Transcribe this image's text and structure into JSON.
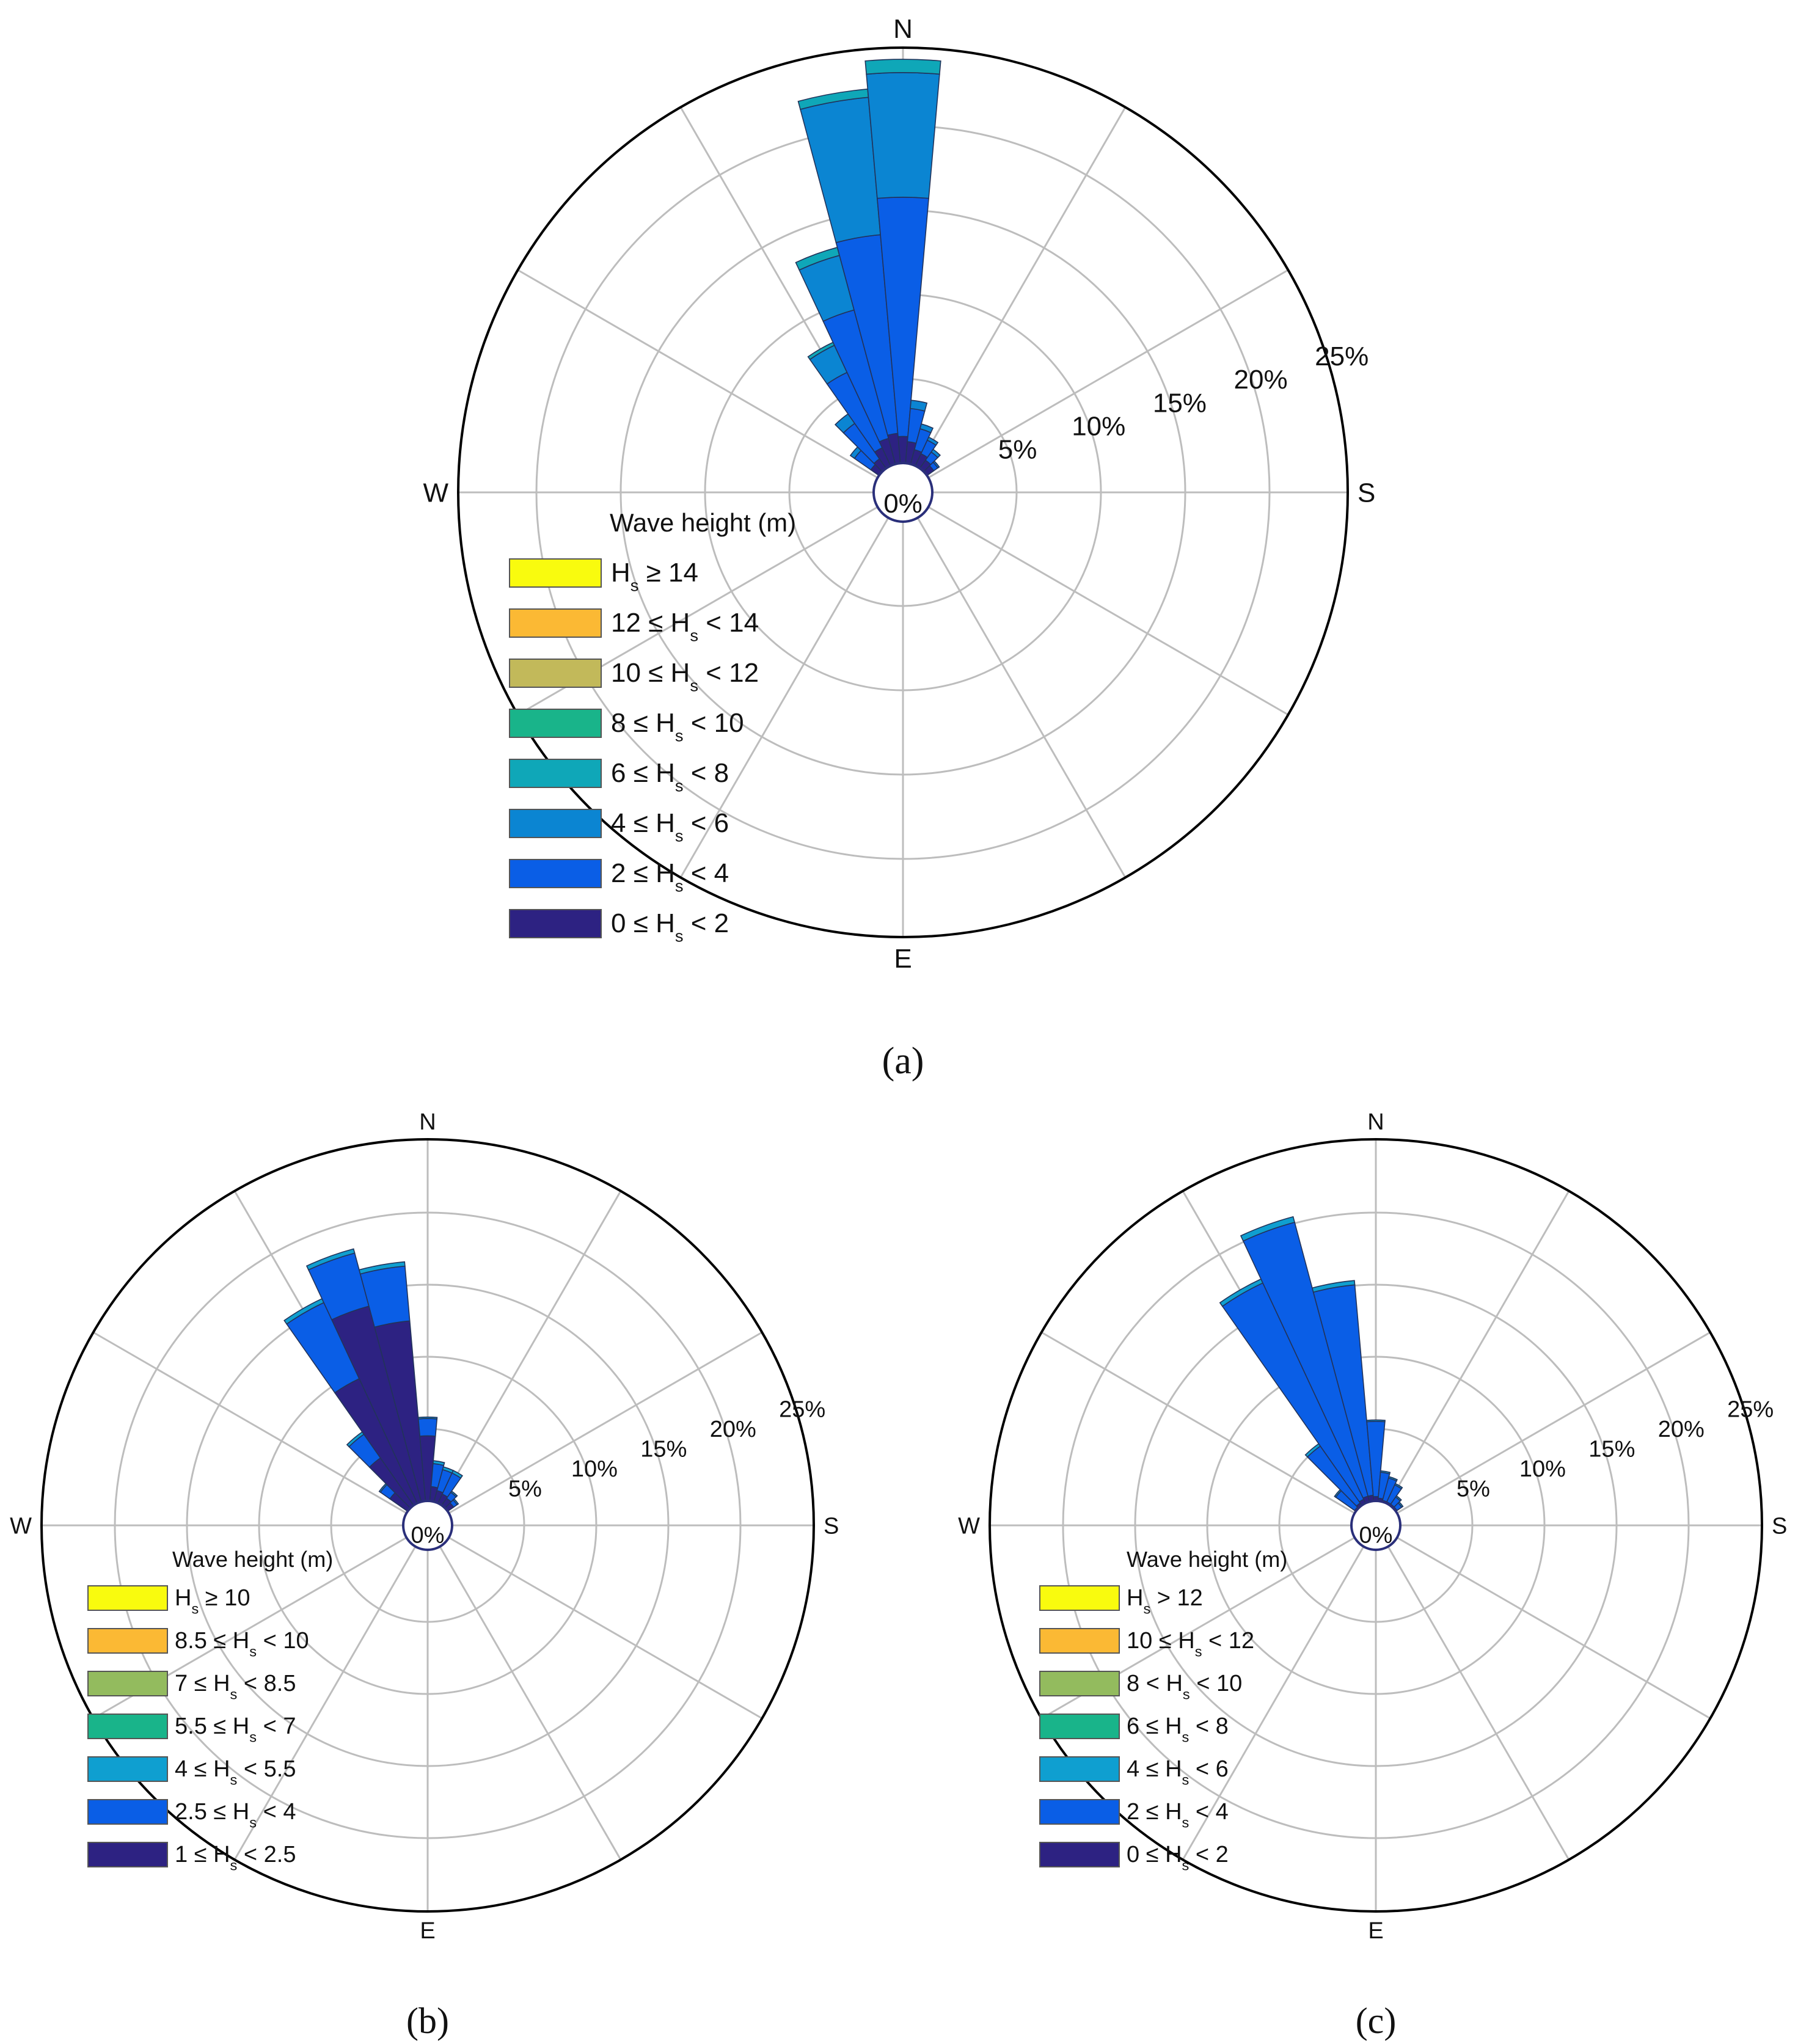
{
  "chart_data": [
    {
      "type": "polar-bar",
      "panel": "a",
      "caption": "(a)",
      "directions": [
        "N",
        "S",
        "E",
        "W"
      ],
      "radial_ticks": [
        "0%",
        "5%",
        "10%",
        "15%",
        "20%",
        "25%"
      ],
      "rmax": 25,
      "legend_title": "Wave height (m)",
      "legend": [
        {
          "pre": "H",
          "sub": "s",
          "post": " ≥ 14",
          "color": "#f9fb0e"
        },
        {
          "pre": "12 ≤ H",
          "sub": "s",
          "post": " < 14",
          "color": "#fbb934"
        },
        {
          "pre": "10 ≤ H",
          "sub": "s",
          "post": " < 12",
          "color": "#c2b95a"
        },
        {
          "pre": "8 ≤ H",
          "sub": "s",
          "post": " < 10",
          "color": "#19b48a"
        },
        {
          "pre": "6 ≤ H",
          "sub": "s",
          "post": " < 8",
          "color": "#0fa7b8"
        },
        {
          "pre": "4 ≤ H",
          "sub": "s",
          "post": " < 6",
          "color": "#0b85d2"
        },
        {
          "pre": "2 ≤ H",
          "sub": "s",
          "post": " < 4",
          "color": "#0a5ee6"
        },
        {
          "pre": "0 ≤ H",
          "sub": "s",
          "post": " < 2",
          "color": "#2d2282"
        }
      ],
      "sectors": [
        {
          "dir": -50,
          "v": [
            0.6,
            1.2,
            0.3
          ]
        },
        {
          "dir": -40,
          "v": [
            0.7,
            2.6,
            0.7
          ]
        },
        {
          "dir": -30,
          "v": [
            1.2,
            5.0,
            1.8,
            0.2
          ]
        },
        {
          "dir": -20,
          "v": [
            1.6,
            8.0,
            3.4,
            0.5
          ]
        },
        {
          "dir": -10,
          "v": [
            1.8,
            12.0,
            8.3,
            0.5
          ]
        },
        {
          "dir": 0,
          "v": [
            1.6,
            14.4,
            7.5,
            0.8
          ]
        },
        {
          "dir": 10,
          "v": [
            1.3,
            2.0,
            0.5
          ]
        },
        {
          "dir": 20,
          "v": [
            0.9,
            1.3,
            0.3
          ]
        },
        {
          "dir": 30,
          "v": [
            0.8,
            0.9,
            0.2
          ]
        },
        {
          "dir": 40,
          "v": [
            0.6,
            0.6,
            0.2
          ]
        },
        {
          "dir": 50,
          "v": [
            0.5,
            0.3,
            0.1
          ]
        }
      ]
    },
    {
      "type": "polar-bar",
      "panel": "b",
      "caption": "(b)",
      "directions": [
        "N",
        "S",
        "E",
        "W"
      ],
      "radial_ticks": [
        "0%",
        "5%",
        "10%",
        "15%",
        "20%",
        "25%"
      ],
      "rmax": 25,
      "legend_title": "Wave height (m)",
      "legend": [
        {
          "pre": "H",
          "sub": "s",
          "post": " ≥ 10",
          "color": "#f9fb0e"
        },
        {
          "pre": "8.5 ≤ H",
          "sub": "s",
          "post": " < 10",
          "color": "#fbb934"
        },
        {
          "pre": "7 ≤ H",
          "sub": "s",
          "post": " < 8.5",
          "color": "#93bb5e"
        },
        {
          "pre": "5.5 ≤ H",
          "sub": "s",
          "post": " < 7",
          "color": "#19b48a"
        },
        {
          "pre": "4 ≤ H",
          "sub": "s",
          "post": " < 5.5",
          "color": "#0f9fd0"
        },
        {
          "pre": "2.5 ≤ H",
          "sub": "s",
          "post": " < 4",
          "color": "#0a5ee6"
        },
        {
          "pre": "1 ≤ H",
          "sub": "s",
          "post": " < 2.5",
          "color": "#2d2282"
        }
      ],
      "sectors": [
        {
          "dir": -50,
          "v": [
            1.5,
            0.8,
            0.1
          ]
        },
        {
          "dir": -40,
          "v": [
            4.0,
            2.0,
            0.2
          ]
        },
        {
          "dir": -30,
          "v": [
            9.5,
            5.8,
            0.3
          ]
        },
        {
          "dir": -20,
          "v": [
            14.0,
            3.8,
            0.3
          ]
        },
        {
          "dir": -10,
          "v": [
            12.5,
            3.8,
            0.3
          ]
        },
        {
          "dir": 0,
          "v": [
            4.5,
            1.2,
            0.1
          ]
        },
        {
          "dir": 10,
          "v": [
            1.0,
            1.6,
            0.2
          ]
        },
        {
          "dir": 20,
          "v": [
            0.8,
            1.5,
            0.2
          ]
        },
        {
          "dir": 30,
          "v": [
            0.7,
            1.6,
            0.2
          ]
        },
        {
          "dir": 40,
          "v": [
            0.6,
            0.5,
            0.1
          ]
        },
        {
          "dir": 50,
          "v": [
            0.5,
            0.3,
            0.1
          ]
        }
      ]
    },
    {
      "type": "polar-bar",
      "panel": "c",
      "caption": "(c)",
      "directions": [
        "N",
        "S",
        "E",
        "W"
      ],
      "radial_ticks": [
        "0%",
        "5%",
        "10%",
        "15%",
        "20%",
        "25%"
      ],
      "rmax": 25,
      "legend_title": "Wave height (m)",
      "legend": [
        {
          "pre": "H",
          "sub": "s",
          "post": " > 12",
          "color": "#f9fb0e"
        },
        {
          "pre": "10 ≤ H",
          "sub": "s",
          "post": " < 12",
          "color": "#fbb934"
        },
        {
          "pre": "8 < H",
          "sub": "s",
          "post": " < 10",
          "color": "#93bb5e"
        },
        {
          "pre": "6 ≤ H",
          "sub": "s",
          "post": " < 8",
          "color": "#19b48a"
        },
        {
          "pre": "4 ≤ H",
          "sub": "s",
          "post": " < 6",
          "color": "#0f9fd0"
        },
        {
          "pre": "2 ≤ H",
          "sub": "s",
          "post": " < 4",
          "color": "#0a5ee6"
        },
        {
          "pre": "0 ≤ H",
          "sub": "s",
          "post": " < 2",
          "color": "#2d2282"
        }
      ],
      "sectors": [
        {
          "dir": -50,
          "v": [
            0.1,
            1.6,
            0.1
          ]
        },
        {
          "dir": -40,
          "v": [
            0.2,
            4.8,
            0.2
          ]
        },
        {
          "dir": -30,
          "v": [
            0.3,
            16.5,
            0.3
          ]
        },
        {
          "dir": -20,
          "v": [
            0.4,
            19.6,
            0.4
          ]
        },
        {
          "dir": -10,
          "v": [
            0.4,
            14.6,
            0.3
          ]
        },
        {
          "dir": 0,
          "v": [
            0.3,
            5.2,
            0.1
          ]
        },
        {
          "dir": 10,
          "v": [
            0.2,
            1.8,
            0.1
          ]
        },
        {
          "dir": 20,
          "v": [
            0.1,
            1.6,
            0.1
          ]
        },
        {
          "dir": 30,
          "v": [
            0.1,
            1.3,
            0.1
          ]
        },
        {
          "dir": 40,
          "v": [
            0.1,
            0.6,
            0.1
          ]
        },
        {
          "dir": 50,
          "v": [
            0.1,
            0.4,
            0.1
          ]
        }
      ]
    }
  ]
}
